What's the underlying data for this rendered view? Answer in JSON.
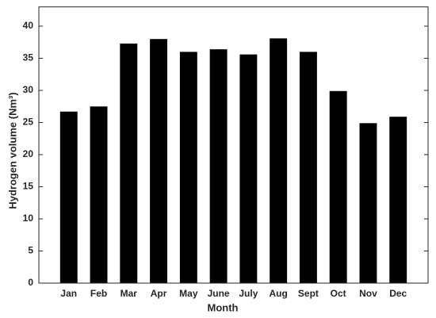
{
  "chart_data": {
    "type": "bar",
    "x_label": "Month",
    "y_label": "Hydrogen volume (Nm³)",
    "categories": [
      "Jan",
      "Feb",
      "Mar",
      "Apr",
      "May",
      "June",
      "July",
      "Aug",
      "Sept",
      "Oct",
      "Nov",
      "Dec"
    ],
    "values": [
      26.7,
      27.5,
      37.3,
      38.0,
      36.0,
      36.4,
      35.6,
      38.1,
      36.0,
      29.9,
      24.9,
      25.9
    ],
    "color": "#000000",
    "ylim": [
      0,
      43
    ],
    "yticks": [
      0,
      5,
      10,
      15,
      20,
      25,
      30,
      35,
      40
    ]
  }
}
